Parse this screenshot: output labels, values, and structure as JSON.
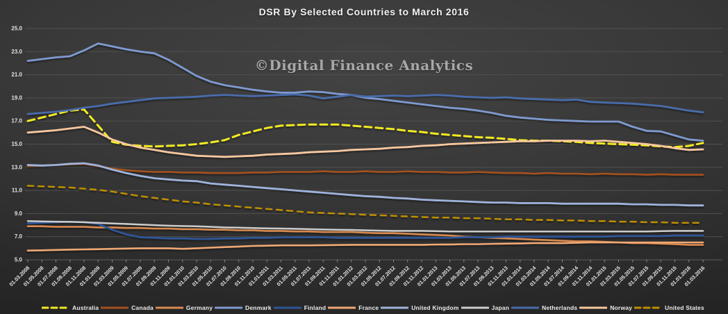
{
  "title": "DSR By Selected Countries to March 2016",
  "watermark": "©Digital Finance Analytics",
  "chart_data": {
    "type": "line",
    "title": "DSR By Selected Countries to March 2016",
    "xlabel": "",
    "ylabel": "",
    "ylim": [
      5.0,
      25.0
    ],
    "grid": true,
    "legend_position": "bottom",
    "y_tick_values": [
      25,
      23,
      21,
      19,
      17,
      15,
      13,
      11,
      9,
      7,
      5
    ],
    "y_tick_labels": [
      "25.0",
      "23.0",
      "21.0",
      "19.0",
      "17.0",
      "15.0",
      "13.0",
      "11.0",
      "9.0",
      "7.0",
      "5.0"
    ],
    "x_labels": [
      "01.03.2008",
      "01.05.2008",
      "01.07.2008",
      "01.09.2008",
      "01.11.2008",
      "01.01.2009",
      "01.03.2009",
      "01.05.2009",
      "01.07.2009",
      "01.09.2009",
      "01.11.2009",
      "01.01.2010",
      "01.03.2010",
      "01.05.2010",
      "01.07.2010",
      "01.09.2010",
      "01.11.2010",
      "01.01.2011",
      "01.03.2011",
      "01.05.2011",
      "01.07.2011",
      "01.09.2011",
      "01.11.2011",
      "01.01.2012",
      "01.03.2012",
      "01.05.2012",
      "01.07.2012",
      "01.09.2012",
      "01.11.2012",
      "01.01.2013",
      "01.03.2013",
      "01.05.2013",
      "01.07.2013",
      "01.09.2013",
      "01.11.2013",
      "01.01.2014",
      "01.03.2014",
      "01.05.2014",
      "01.07.2014",
      "01.09.2014",
      "01.11.2014",
      "01.01.2015",
      "01.03.2015",
      "01.05.2015",
      "01.07.2015",
      "01.09.2015",
      "01.11.2015",
      "01.01.2016",
      "01.03.2016"
    ],
    "series": [
      {
        "name": "Australia",
        "color": "#f2ea20",
        "dash": "10 6",
        "width": 3,
        "values": [
          17.0,
          17.3,
          17.6,
          17.9,
          18.0,
          16.6,
          15.2,
          14.95,
          14.85,
          14.8,
          14.85,
          14.9,
          15.0,
          15.15,
          15.35,
          15.8,
          16.1,
          16.4,
          16.6,
          16.65,
          16.7,
          16.7,
          16.7,
          16.6,
          16.5,
          16.4,
          16.3,
          16.15,
          16.05,
          15.9,
          15.8,
          15.7,
          15.6,
          15.55,
          15.45,
          15.35,
          15.3,
          15.3,
          15.25,
          15.2,
          15.1,
          15.05,
          15.0,
          14.95,
          14.9,
          14.8,
          14.75,
          14.85,
          15.1
        ]
      },
      {
        "name": "Canada",
        "color": "#a5511d",
        "dash": null,
        "width": 2.6,
        "values": [
          13.1,
          13.15,
          13.2,
          13.25,
          13.3,
          13.1,
          12.9,
          12.75,
          12.65,
          12.6,
          12.6,
          12.55,
          12.55,
          12.5,
          12.5,
          12.5,
          12.55,
          12.55,
          12.6,
          12.6,
          12.6,
          12.65,
          12.6,
          12.6,
          12.65,
          12.6,
          12.6,
          12.65,
          12.6,
          12.6,
          12.55,
          12.55,
          12.6,
          12.55,
          12.5,
          12.5,
          12.45,
          12.5,
          12.45,
          12.45,
          12.4,
          12.45,
          12.4,
          12.4,
          12.35,
          12.4,
          12.35,
          12.35,
          12.35
        ]
      },
      {
        "name": "Germany",
        "color": "#d98a50",
        "dash": null,
        "width": 2.6,
        "values": [
          7.9,
          7.9,
          7.85,
          7.85,
          7.85,
          7.8,
          7.8,
          7.75,
          7.75,
          7.7,
          7.7,
          7.65,
          7.65,
          7.6,
          7.6,
          7.55,
          7.55,
          7.5,
          7.5,
          7.45,
          7.45,
          7.4,
          7.4,
          7.4,
          7.35,
          7.3,
          7.3,
          7.25,
          7.2,
          7.15,
          7.1,
          7.0,
          6.95,
          6.9,
          6.85,
          6.8,
          6.75,
          6.7,
          6.65,
          6.6,
          6.6,
          6.55,
          6.5,
          6.45,
          6.45,
          6.4,
          6.35,
          6.3,
          6.3
        ]
      },
      {
        "name": "Denmark",
        "color": "#7e9ad0",
        "dash": null,
        "width": 2.8,
        "values": [
          22.2,
          22.35,
          22.5,
          22.6,
          23.1,
          23.7,
          23.45,
          23.2,
          23.0,
          22.85,
          22.3,
          21.6,
          20.9,
          20.4,
          20.1,
          19.9,
          19.7,
          19.55,
          19.45,
          19.45,
          19.55,
          19.5,
          19.35,
          19.25,
          19.0,
          18.9,
          18.75,
          18.6,
          18.45,
          18.3,
          18.15,
          18.05,
          17.9,
          17.7,
          17.45,
          17.3,
          17.2,
          17.1,
          17.05,
          17.0,
          16.95,
          16.95,
          16.95,
          16.5,
          16.15,
          16.1,
          15.75,
          15.4,
          15.3
        ]
      },
      {
        "name": "Finland",
        "color": "#2e5597",
        "dash": null,
        "width": 2.8,
        "values": [
          8.15,
          8.2,
          8.25,
          8.3,
          8.25,
          8.1,
          7.6,
          7.2,
          6.95,
          6.9,
          6.85,
          6.85,
          6.8,
          6.8,
          6.85,
          6.85,
          6.9,
          6.9,
          6.95,
          6.95,
          6.95,
          6.95,
          6.9,
          6.9,
          6.9,
          6.9,
          6.9,
          6.9,
          6.9,
          6.9,
          6.9,
          6.95,
          6.95,
          6.95,
          7.0,
          7.0,
          7.0,
          7.0,
          7.0,
          7.0,
          7.0,
          7.0,
          7.05,
          7.05,
          7.05,
          7.05,
          7.1,
          7.1,
          7.1
        ]
      },
      {
        "name": "France",
        "color": "#f0a875",
        "dash": null,
        "width": 2.6,
        "values": [
          5.8,
          5.82,
          5.85,
          5.88,
          5.9,
          5.92,
          5.95,
          5.97,
          6.0,
          6.0,
          6.0,
          5.95,
          6.0,
          6.05,
          6.1,
          6.15,
          6.2,
          6.22,
          6.25,
          6.25,
          6.25,
          6.27,
          6.28,
          6.3,
          6.3,
          6.3,
          6.3,
          6.3,
          6.3,
          6.32,
          6.33,
          6.35,
          6.35,
          6.38,
          6.4,
          6.42,
          6.45,
          6.45,
          6.45,
          6.47,
          6.5,
          6.5,
          6.5,
          6.5,
          6.5,
          6.5,
          6.5,
          6.5,
          6.5
        ]
      },
      {
        "name": "United Kingdom",
        "color": "#9fb3dc",
        "dash": null,
        "width": 2.8,
        "values": [
          13.2,
          13.15,
          13.2,
          13.3,
          13.35,
          13.15,
          12.8,
          12.5,
          12.25,
          12.05,
          11.95,
          11.85,
          11.8,
          11.6,
          11.5,
          11.4,
          11.3,
          11.2,
          11.1,
          11.0,
          10.9,
          10.8,
          10.7,
          10.6,
          10.5,
          10.45,
          10.35,
          10.3,
          10.2,
          10.15,
          10.1,
          10.05,
          10.0,
          9.95,
          9.95,
          9.9,
          9.9,
          9.9,
          9.85,
          9.85,
          9.85,
          9.85,
          9.85,
          9.8,
          9.8,
          9.75,
          9.75,
          9.7,
          9.7
        ]
      },
      {
        "name": "Japan",
        "color": "#cccccc",
        "dash": null,
        "width": 2.5,
        "values": [
          8.35,
          8.32,
          8.3,
          8.28,
          8.25,
          8.2,
          8.15,
          8.1,
          8.05,
          8.0,
          7.95,
          7.92,
          7.9,
          7.85,
          7.8,
          7.78,
          7.75,
          7.72,
          7.7,
          7.68,
          7.65,
          7.62,
          7.6,
          7.58,
          7.55,
          7.52,
          7.5,
          7.5,
          7.5,
          7.48,
          7.45,
          7.45,
          7.45,
          7.45,
          7.45,
          7.45,
          7.45,
          7.45,
          7.45,
          7.45,
          7.45,
          7.45,
          7.45,
          7.45,
          7.45,
          7.48,
          7.5,
          7.5,
          7.5
        ]
      },
      {
        "name": "Netherlands",
        "color": "#4a6cab",
        "dash": null,
        "width": 2.8,
        "values": [
          17.6,
          17.7,
          17.8,
          17.95,
          18.15,
          18.3,
          18.5,
          18.65,
          18.8,
          18.95,
          19.0,
          19.05,
          19.1,
          19.2,
          19.25,
          19.2,
          19.15,
          19.2,
          19.25,
          19.3,
          19.2,
          18.95,
          19.1,
          19.25,
          19.1,
          19.15,
          19.2,
          19.15,
          19.2,
          19.25,
          19.2,
          19.1,
          19.05,
          19.0,
          19.05,
          18.95,
          18.9,
          18.85,
          18.8,
          18.85,
          18.65,
          18.6,
          18.55,
          18.5,
          18.4,
          18.3,
          18.1,
          17.9,
          17.75
        ]
      },
      {
        "name": "Norway",
        "color": "#f7c89f",
        "dash": null,
        "width": 2.8,
        "values": [
          16.0,
          16.1,
          16.2,
          16.35,
          16.5,
          16.0,
          15.4,
          15.0,
          14.7,
          14.5,
          14.3,
          14.15,
          14.0,
          13.95,
          13.9,
          13.95,
          14.0,
          14.1,
          14.15,
          14.2,
          14.3,
          14.35,
          14.4,
          14.5,
          14.55,
          14.6,
          14.7,
          14.75,
          14.85,
          14.9,
          15.0,
          15.05,
          15.1,
          15.15,
          15.2,
          15.25,
          15.25,
          15.3,
          15.3,
          15.3,
          15.25,
          15.3,
          15.2,
          15.1,
          15.0,
          14.85,
          14.65,
          14.5,
          14.55
        ]
      },
      {
        "name": "United States",
        "color": "#bf8f00",
        "dash": "8 7",
        "width": 2.5,
        "values": [
          11.4,
          11.35,
          11.3,
          11.25,
          11.15,
          11.05,
          10.9,
          10.7,
          10.5,
          10.35,
          10.2,
          10.05,
          9.95,
          9.8,
          9.7,
          9.6,
          9.5,
          9.4,
          9.3,
          9.2,
          9.1,
          9.05,
          9.0,
          8.95,
          8.9,
          8.85,
          8.8,
          8.75,
          8.7,
          8.65,
          8.65,
          8.6,
          8.6,
          8.55,
          8.5,
          8.5,
          8.45,
          8.45,
          8.4,
          8.4,
          8.35,
          8.35,
          8.3,
          8.3,
          8.25,
          8.25,
          8.2,
          8.2,
          8.2
        ]
      }
    ]
  }
}
